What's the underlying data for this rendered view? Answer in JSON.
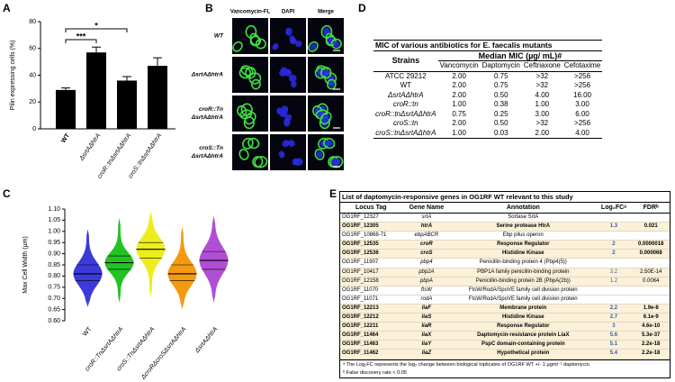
{
  "panels": [
    "A",
    "B",
    "C",
    "D",
    "E"
  ],
  "chart_data": [
    {
      "type": "bar",
      "ylabel": "Pilin expressing cells (%)",
      "categories": [
        "WT",
        "ΔsrtAΔhtrA",
        "croR::tnΔsrtAΔhtrA",
        "croS::tnΔsrtAΔhtrA"
      ],
      "values": [
        29,
        57,
        36,
        47
      ],
      "errors": [
        1.5,
        4,
        3,
        6
      ],
      "color": "#000000",
      "ylim": [
        0,
        80
      ],
      "yticks": [
        0,
        20,
        40,
        60,
        80
      ],
      "significance": [
        "***",
        "*"
      ]
    },
    {
      "type": "violin",
      "ylabel": "Max Cell Width (µm)",
      "categories": [
        "WT",
        "croR::TnΔsrtAΔhtrA",
        "croS::TnΔsrtAΔhtrA",
        "ΔcroRΔcroSΔsrtAΔhtrA",
        "ΔsrtAΔhtrA"
      ],
      "colors": [
        "#3b3bd9",
        "#22c322",
        "#eded1e",
        "#f39a11",
        "#b04fd6"
      ],
      "min": [
        0.66,
        0.68,
        0.71,
        0.65,
        0.68
      ],
      "q1": [
        0.78,
        0.83,
        0.88,
        0.78,
        0.83
      ],
      "median": [
        0.81,
        0.86,
        0.92,
        0.81,
        0.87
      ],
      "q3": [
        0.85,
        0.89,
        0.95,
        0.85,
        0.91
      ],
      "max": [
        1.01,
        1.06,
        1.09,
        1.02,
        1.07
      ],
      "ylim": [
        0.6,
        1.1
      ],
      "yticks": [
        {
          "value": 0.6,
          "label": "0.60"
        },
        0.65,
        {
          "value": 0.7,
          "label": "0.70"
        },
        0.75,
        {
          "value": 0.8,
          "label": "0.80"
        },
        0.85,
        {
          "value": 0.9,
          "label": "0.90"
        },
        0.95,
        {
          "value": 1.0,
          "label": "1.00"
        },
        1.05,
        {
          "value": 1.1,
          "label": "1.10"
        }
      ]
    }
  ],
  "microscopy": {
    "columns": [
      "Vancomycin-FL",
      "DAPI",
      "Merge"
    ],
    "rows": [
      [
        "WT"
      ],
      [
        "ΔsrtAΔhtrA"
      ],
      [
        "croR::Tn",
        "ΔsrtAΔhtrA"
      ],
      [
        "croS::Tn",
        "ΔsrtAΔhtrA"
      ]
    ]
  },
  "table_d": {
    "title": "MIC of various antibiotics for E. faecalis mutants",
    "strains_header": "Strains",
    "group_header": "Median MIC (µg/ mL)#",
    "columns": [
      "Vancomycin",
      "Daptomycin",
      "Ceftriaxone",
      "Cefotaxime"
    ],
    "rows": [
      {
        "strain": "ATCC 29212",
        "values": [
          "2.00",
          "0.75",
          ">32",
          ">256"
        ]
      },
      {
        "strain": "WT",
        "values": [
          "2.00",
          "0.75",
          ">32",
          ">256"
        ]
      },
      {
        "strain": "ΔsrtAΔhtrA",
        "values": [
          "2.00",
          "0.50",
          "4.00",
          "16.00"
        ]
      },
      {
        "strain": "croR::tn",
        "values": [
          "1.00",
          "0.38",
          "1.00",
          "3.00"
        ]
      },
      {
        "strain": "croR::tnΔsrtAΔhtrA",
        "values": [
          "0.75",
          "0.25",
          "3.00",
          "6.00"
        ]
      },
      {
        "strain": "croS::tn",
        "values": [
          "2.00",
          "0.50",
          ">32",
          ">256"
        ]
      },
      {
        "strain": "croS::tnΔsrtAΔhtrA",
        "values": [
          "1.00",
          "0.03",
          "2.00",
          "4.00"
        ]
      }
    ]
  },
  "table_e": {
    "title": "List of daptomycin-responsive genes in OG1RF WT relevant to this study",
    "columns": [
      "Locus Tag",
      "Gene Name",
      "Annotation",
      "Log₂FCᵃ",
      "FDRᵇ"
    ],
    "rows": [
      {
        "locus": "OG1RF_12327",
        "gene": "srtA",
        "annotation": "Sortase SrtA",
        "log2fc": null,
        "fdr": null,
        "bold": false,
        "highlight": false
      },
      {
        "locus": "OG1RF_12305",
        "gene": "htrA",
        "annotation": "Serine protease HtrA",
        "log2fc": "1.3",
        "fdr": "0.021",
        "bold": true,
        "highlight": true
      },
      {
        "locus": "OG1RF_10868-71",
        "gene": "ebpABCR",
        "annotation": "Ebp pilus operon",
        "log2fc": null,
        "fdr": null,
        "bold": false,
        "highlight": false
      },
      {
        "locus": "OG1RF_12535",
        "gene": "croR",
        "annotation": "Response Regulator",
        "log2fc": "2",
        "fdr": "0.0000018",
        "bold": true,
        "highlight": true
      },
      {
        "locus": "OG1RF_12536",
        "gene": "croS",
        "annotation": "Histidine Kinase",
        "log2fc": "2",
        "fdr": "0.000068",
        "bold": true,
        "highlight": true
      },
      {
        "locus": "OG1RF_11907",
        "gene": "pbp4",
        "annotation": "Penicillin-binding protein 4 (Pbp4(5))",
        "log2fc": null,
        "fdr": null,
        "bold": false,
        "highlight": false
      },
      {
        "locus": "OG1RF_10417",
        "gene": "pbp2A",
        "annotation": "PBP1A family penicillin-binding protein",
        "log2fc": "3.2",
        "fdr": "2.50E-14",
        "bold": false,
        "highlight": true
      },
      {
        "locus": "OG1RF_12158",
        "gene": "pbpA",
        "annotation": "Penicillin-binding protein 2B (PbpA(2b))",
        "log2fc": "1.2",
        "fdr": "0.0064",
        "bold": false,
        "highlight": true
      },
      {
        "locus": "OG1RF_11070",
        "gene": "ftsW",
        "annotation": "FtsW/RodA/SpoVE family cell division protein",
        "log2fc": null,
        "fdr": null,
        "bold": false,
        "highlight": false
      },
      {
        "locus": "OG1RF_11071",
        "gene": "rodA",
        "annotation": "FtsW/RodA/SpoVE family cell division protein",
        "log2fc": null,
        "fdr": null,
        "bold": false,
        "highlight": false
      },
      {
        "locus": "OG1RF_12213",
        "gene": "liaF",
        "annotation": "Membrane protein",
        "log2fc": "2.2",
        "fdr": "1.9e-8",
        "bold": true,
        "highlight": true
      },
      {
        "locus": "OG1RF_12212",
        "gene": "liaS",
        "annotation": "Histidine Kinase",
        "log2fc": "2.7",
        "fdr": "6.1e-9",
        "bold": true,
        "highlight": true
      },
      {
        "locus": "OG1RF_12211",
        "gene": "liaR",
        "annotation": "Response Regulator",
        "log2fc": "3",
        "fdr": "4.6e-10",
        "bold": true,
        "highlight": true
      },
      {
        "locus": "OG1RF_11464",
        "gene": "liaX",
        "annotation": "Daptomycin-resistance protein LiaX",
        "log2fc": "5.6",
        "fdr": "5.3e-37",
        "bold": true,
        "highlight": true
      },
      {
        "locus": "OG1RF_11463",
        "gene": "liaY",
        "annotation": "PspC domain-containing protein",
        "log2fc": "5.1",
        "fdr": "2.2e-18",
        "bold": true,
        "highlight": true
      },
      {
        "locus": "OG1RF_11462",
        "gene": "liaZ",
        "annotation": "Hypothetical protein",
        "log2fc": "5.4",
        "fdr": "2.2e-18",
        "bold": true,
        "highlight": true
      }
    ],
    "footnotes": [
      "ᵃ The Log₂FC represents the log₂ change between biological triplicates of OG1RF WT +/- 1 µgml⁻¹ daptomycin.",
      "ᵇ False discovery rate < 0.05"
    ]
  }
}
